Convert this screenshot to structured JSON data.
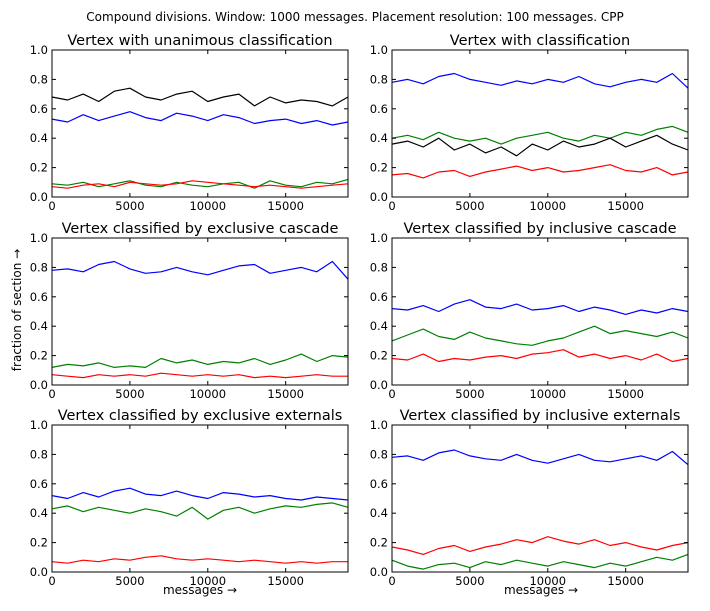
{
  "figure": {
    "suptitle": "Compound divisions. Window: 1000 messages. Placement resolution: 100 messages. CPP",
    "xlabel": "messages →",
    "ylabel": "fraction of section →"
  },
  "colors": {
    "blue": "#0000ff",
    "green": "#008000",
    "red": "#ff0000",
    "black": "#000000"
  },
  "chart_data": [
    {
      "type": "line",
      "title": "Vertex with unanimous classification",
      "xlim": [
        0,
        19000
      ],
      "ylim": [
        0,
        1.0
      ],
      "xticks": [
        "0",
        "5000",
        "10000",
        "15000"
      ],
      "yticks": [
        "0.0",
        "0.2",
        "0.4",
        "0.6",
        "0.8",
        "1.0"
      ],
      "x": [
        0,
        1000,
        2000,
        3000,
        4000,
        5000,
        6000,
        7000,
        8000,
        9000,
        10000,
        11000,
        12000,
        13000,
        14000,
        15000,
        16000,
        17000,
        18000,
        19000
      ],
      "series": [
        {
          "color": "black",
          "values": [
            0.68,
            0.66,
            0.7,
            0.65,
            0.72,
            0.74,
            0.68,
            0.66,
            0.7,
            0.72,
            0.65,
            0.68,
            0.7,
            0.62,
            0.68,
            0.64,
            0.66,
            0.65,
            0.62,
            0.68
          ]
        },
        {
          "color": "blue",
          "values": [
            0.53,
            0.51,
            0.56,
            0.52,
            0.55,
            0.58,
            0.54,
            0.52,
            0.57,
            0.55,
            0.52,
            0.56,
            0.54,
            0.5,
            0.52,
            0.53,
            0.5,
            0.52,
            0.49,
            0.51
          ]
        },
        {
          "color": "green",
          "values": [
            0.09,
            0.08,
            0.1,
            0.07,
            0.09,
            0.11,
            0.08,
            0.07,
            0.1,
            0.08,
            0.07,
            0.09,
            0.1,
            0.06,
            0.11,
            0.08,
            0.07,
            0.1,
            0.09,
            0.12
          ]
        },
        {
          "color": "red",
          "values": [
            0.07,
            0.06,
            0.08,
            0.09,
            0.07,
            0.1,
            0.09,
            0.08,
            0.09,
            0.11,
            0.1,
            0.09,
            0.08,
            0.07,
            0.08,
            0.07,
            0.06,
            0.07,
            0.08,
            0.09
          ]
        }
      ]
    },
    {
      "type": "line",
      "title": "Vertex with classification",
      "xlim": [
        0,
        19000
      ],
      "ylim": [
        0,
        1.0
      ],
      "xticks": [
        "0",
        "5000",
        "10000",
        "15000"
      ],
      "yticks": [
        "0.0",
        "0.2",
        "0.4",
        "0.6",
        "0.8",
        "1.0"
      ],
      "x": [
        0,
        1000,
        2000,
        3000,
        4000,
        5000,
        6000,
        7000,
        8000,
        9000,
        10000,
        11000,
        12000,
        13000,
        14000,
        15000,
        16000,
        17000,
        18000,
        19000
      ],
      "series": [
        {
          "color": "blue",
          "values": [
            0.78,
            0.8,
            0.77,
            0.82,
            0.84,
            0.8,
            0.78,
            0.76,
            0.79,
            0.77,
            0.8,
            0.78,
            0.82,
            0.77,
            0.75,
            0.78,
            0.8,
            0.78,
            0.84,
            0.74
          ]
        },
        {
          "color": "green",
          "values": [
            0.4,
            0.42,
            0.39,
            0.44,
            0.4,
            0.38,
            0.4,
            0.36,
            0.4,
            0.42,
            0.44,
            0.4,
            0.38,
            0.42,
            0.4,
            0.44,
            0.42,
            0.46,
            0.48,
            0.44
          ]
        },
        {
          "color": "black",
          "values": [
            0.36,
            0.38,
            0.34,
            0.4,
            0.32,
            0.36,
            0.3,
            0.34,
            0.28,
            0.36,
            0.32,
            0.38,
            0.34,
            0.36,
            0.4,
            0.34,
            0.38,
            0.42,
            0.36,
            0.32
          ]
        },
        {
          "color": "red",
          "values": [
            0.15,
            0.16,
            0.13,
            0.17,
            0.18,
            0.14,
            0.17,
            0.19,
            0.21,
            0.18,
            0.2,
            0.17,
            0.18,
            0.2,
            0.22,
            0.18,
            0.17,
            0.2,
            0.15,
            0.17
          ]
        }
      ]
    },
    {
      "type": "line",
      "title": "Vertex classified by exclusive cascade",
      "xlim": [
        0,
        19000
      ],
      "ylim": [
        0,
        1.0
      ],
      "xticks": [
        "0",
        "5000",
        "10000",
        "15000"
      ],
      "yticks": [
        "0.0",
        "0.2",
        "0.4",
        "0.6",
        "0.8",
        "1.0"
      ],
      "x": [
        0,
        1000,
        2000,
        3000,
        4000,
        5000,
        6000,
        7000,
        8000,
        9000,
        10000,
        11000,
        12000,
        13000,
        14000,
        15000,
        16000,
        17000,
        18000,
        19000
      ],
      "series": [
        {
          "color": "blue",
          "values": [
            0.78,
            0.79,
            0.77,
            0.82,
            0.84,
            0.79,
            0.76,
            0.77,
            0.8,
            0.77,
            0.75,
            0.78,
            0.81,
            0.82,
            0.76,
            0.78,
            0.8,
            0.77,
            0.84,
            0.72
          ]
        },
        {
          "color": "green",
          "values": [
            0.12,
            0.14,
            0.13,
            0.15,
            0.12,
            0.13,
            0.12,
            0.18,
            0.15,
            0.17,
            0.14,
            0.16,
            0.15,
            0.18,
            0.14,
            0.17,
            0.21,
            0.16,
            0.2,
            0.19
          ]
        },
        {
          "color": "red",
          "values": [
            0.07,
            0.06,
            0.05,
            0.07,
            0.06,
            0.07,
            0.06,
            0.08,
            0.07,
            0.06,
            0.07,
            0.06,
            0.07,
            0.05,
            0.06,
            0.05,
            0.06,
            0.07,
            0.06,
            0.06
          ]
        }
      ]
    },
    {
      "type": "line",
      "title": "Vertex classified by inclusive cascade",
      "xlim": [
        0,
        19000
      ],
      "ylim": [
        0,
        1.0
      ],
      "xticks": [
        "0",
        "5000",
        "10000",
        "15000"
      ],
      "yticks": [
        "0.0",
        "0.2",
        "0.4",
        "0.6",
        "0.8",
        "1.0"
      ],
      "x": [
        0,
        1000,
        2000,
        3000,
        4000,
        5000,
        6000,
        7000,
        8000,
        9000,
        10000,
        11000,
        12000,
        13000,
        14000,
        15000,
        16000,
        17000,
        18000,
        19000
      ],
      "series": [
        {
          "color": "blue",
          "values": [
            0.52,
            0.51,
            0.54,
            0.5,
            0.55,
            0.58,
            0.53,
            0.52,
            0.55,
            0.51,
            0.52,
            0.54,
            0.5,
            0.53,
            0.51,
            0.48,
            0.51,
            0.49,
            0.52,
            0.5
          ]
        },
        {
          "color": "green",
          "values": [
            0.3,
            0.34,
            0.38,
            0.33,
            0.31,
            0.36,
            0.32,
            0.3,
            0.28,
            0.27,
            0.3,
            0.32,
            0.36,
            0.4,
            0.35,
            0.37,
            0.35,
            0.33,
            0.36,
            0.32
          ]
        },
        {
          "color": "red",
          "values": [
            0.18,
            0.17,
            0.21,
            0.16,
            0.18,
            0.17,
            0.19,
            0.2,
            0.18,
            0.21,
            0.22,
            0.24,
            0.19,
            0.21,
            0.18,
            0.2,
            0.17,
            0.21,
            0.16,
            0.18
          ]
        }
      ]
    },
    {
      "type": "line",
      "title": "Vertex classified by exclusive externals",
      "xlim": [
        0,
        19000
      ],
      "ylim": [
        0,
        1.0
      ],
      "xticks": [
        "0",
        "5000",
        "10000",
        "15000"
      ],
      "yticks": [
        "0.0",
        "0.2",
        "0.4",
        "0.6",
        "0.8",
        "1.0"
      ],
      "x": [
        0,
        1000,
        2000,
        3000,
        4000,
        5000,
        6000,
        7000,
        8000,
        9000,
        10000,
        11000,
        12000,
        13000,
        14000,
        15000,
        16000,
        17000,
        18000,
        19000
      ],
      "series": [
        {
          "color": "blue",
          "values": [
            0.52,
            0.5,
            0.54,
            0.51,
            0.55,
            0.57,
            0.53,
            0.52,
            0.55,
            0.52,
            0.5,
            0.54,
            0.53,
            0.51,
            0.52,
            0.5,
            0.49,
            0.51,
            0.5,
            0.49
          ]
        },
        {
          "color": "green",
          "values": [
            0.43,
            0.45,
            0.41,
            0.44,
            0.42,
            0.4,
            0.43,
            0.41,
            0.38,
            0.44,
            0.36,
            0.42,
            0.44,
            0.4,
            0.43,
            0.45,
            0.44,
            0.46,
            0.47,
            0.44
          ]
        },
        {
          "color": "red",
          "values": [
            0.07,
            0.06,
            0.08,
            0.07,
            0.09,
            0.08,
            0.1,
            0.11,
            0.09,
            0.08,
            0.09,
            0.08,
            0.07,
            0.08,
            0.07,
            0.06,
            0.07,
            0.06,
            0.07,
            0.07
          ]
        }
      ]
    },
    {
      "type": "line",
      "title": "Vertex classified by inclusive externals",
      "xlim": [
        0,
        19000
      ],
      "ylim": [
        0,
        1.0
      ],
      "xticks": [
        "0",
        "5000",
        "10000",
        "15000"
      ],
      "yticks": [
        "0.0",
        "0.2",
        "0.4",
        "0.6",
        "0.8",
        "1.0"
      ],
      "x": [
        0,
        1000,
        2000,
        3000,
        4000,
        5000,
        6000,
        7000,
        8000,
        9000,
        10000,
        11000,
        12000,
        13000,
        14000,
        15000,
        16000,
        17000,
        18000,
        19000
      ],
      "series": [
        {
          "color": "blue",
          "values": [
            0.78,
            0.79,
            0.76,
            0.81,
            0.83,
            0.79,
            0.77,
            0.76,
            0.8,
            0.76,
            0.74,
            0.77,
            0.8,
            0.76,
            0.75,
            0.77,
            0.79,
            0.76,
            0.82,
            0.73
          ]
        },
        {
          "color": "red",
          "values": [
            0.17,
            0.15,
            0.12,
            0.16,
            0.18,
            0.14,
            0.17,
            0.19,
            0.22,
            0.2,
            0.24,
            0.21,
            0.19,
            0.22,
            0.18,
            0.2,
            0.17,
            0.15,
            0.18,
            0.2
          ]
        },
        {
          "color": "green",
          "values": [
            0.08,
            0.04,
            0.02,
            0.05,
            0.06,
            0.03,
            0.07,
            0.05,
            0.08,
            0.06,
            0.04,
            0.07,
            0.05,
            0.03,
            0.06,
            0.04,
            0.07,
            0.1,
            0.08,
            0.12
          ]
        }
      ]
    }
  ]
}
